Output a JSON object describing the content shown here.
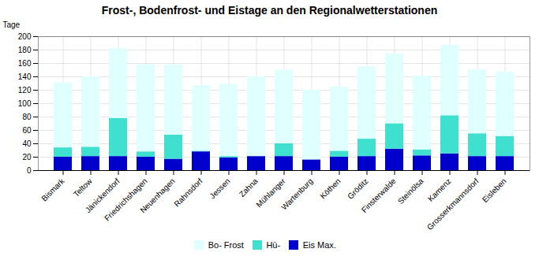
{
  "chart_data": {
    "type": "bar",
    "stacked": true,
    "title": "Frost-, Bodenfrost- und Eistage an den Regionalwetterstationen",
    "ylabel": "Tage",
    "categories": [
      "Bismark",
      "Teltow",
      "Jänickendorf",
      "Friedrichshagen",
      "Neuenhagen",
      "Rahnsdorf",
      "Jessen",
      "Zahna",
      "Mühlanger",
      "Wartenburg",
      "Köthen",
      "Gröditz",
      "Finsterwalde",
      "Steinölsa",
      "Kamenz",
      "Grosserkmannsdorf",
      "Eisleben"
    ],
    "series": [
      {
        "name": "Eis Max.",
        "color": "#0000cc",
        "values": [
          20,
          21,
          21,
          20,
          17,
          28,
          19,
          21,
          21,
          16,
          20,
          21,
          32,
          22,
          25,
          21,
          21
        ]
      },
      {
        "name": "Hü-",
        "color": "#40e0d0",
        "values": [
          14,
          14,
          57,
          8,
          36,
          1,
          2,
          0,
          19,
          0,
          9,
          26,
          38,
          9,
          57,
          34,
          30
        ]
      },
      {
        "name": "Bo- Frost",
        "color": "#e0ffff",
        "values": [
          97,
          105,
          104,
          130,
          105,
          98,
          108,
          119,
          110,
          104,
          96,
          108,
          104,
          110,
          105,
          95,
          96
        ]
      }
    ],
    "ylim": [
      0,
      200
    ],
    "yticks": [
      0,
      20,
      40,
      60,
      80,
      100,
      120,
      140,
      160,
      180,
      200
    ],
    "grid": true,
    "legend": "bottom"
  }
}
